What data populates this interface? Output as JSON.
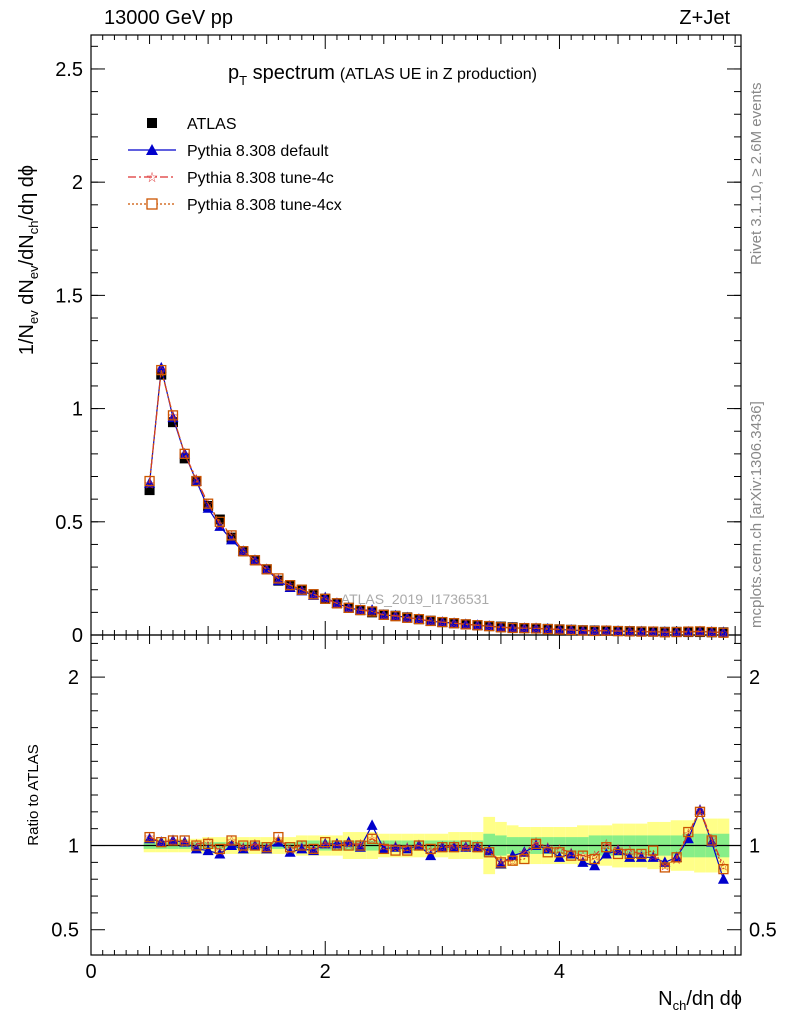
{
  "header": {
    "left": "13000 GeV pp",
    "right": "Z+Jet"
  },
  "side_labels": {
    "rivet": "Rivet 3.1.10, ≥ 2.6M events",
    "mcplots": "mcplots.cern.ch [arXiv:1306.3436]"
  },
  "chart_data": [
    {
      "type": "scatter",
      "panel": "main",
      "title_main": "p",
      "title_sub": "T",
      "title_rest": " spectrum",
      "title_note": "(ATLAS UE in Z production)",
      "watermark": "ATLAS_2019_I1736531",
      "xlabel_main": "N",
      "xlabel_sub": "ch",
      "xlabel_rest": "/dη dϕ",
      "ylabel_pre": "1/N",
      "ylabel_sub1": "ev",
      "ylabel_mid": " dN",
      "ylabel_sub2": "ev",
      "ylabel_mid2": "/dN",
      "ylabel_sub3": "ch",
      "ylabel_post": "/dη dϕ",
      "xlim": [
        0,
        5.55
      ],
      "ylim": [
        0,
        2.65
      ],
      "y_ticks": [
        "0",
        "0.5",
        "1",
        "1.5",
        "2",
        "2.5"
      ],
      "y_tick_values": [
        0,
        0.5,
        1,
        1.5,
        2,
        2.5
      ],
      "legend_position": "top-left",
      "x": [
        0.5,
        0.6,
        0.7,
        0.8,
        0.9,
        1.0,
        1.1,
        1.2,
        1.3,
        1.4,
        1.5,
        1.6,
        1.7,
        1.8,
        1.9,
        2.0,
        2.1,
        2.2,
        2.3,
        2.4,
        2.5,
        2.6,
        2.7,
        2.8,
        2.9,
        3.0,
        3.1,
        3.2,
        3.3,
        3.4,
        3.5,
        3.6,
        3.7,
        3.8,
        3.9,
        4.0,
        4.1,
        4.2,
        4.3,
        4.4,
        4.5,
        4.6,
        4.7,
        4.8,
        4.9,
        5.0,
        5.1,
        5.2,
        5.3,
        5.4
      ],
      "series": [
        {
          "name": "ATLAS",
          "color": "#000000",
          "marker": "square",
          "values": [
            0.64,
            1.15,
            0.94,
            0.78,
            0.68,
            0.57,
            0.51,
            0.43,
            0.37,
            0.33,
            0.29,
            0.24,
            0.22,
            0.2,
            0.18,
            0.16,
            0.14,
            0.12,
            0.11,
            0.1,
            0.09,
            0.085,
            0.078,
            0.07,
            0.063,
            0.057,
            0.052,
            0.047,
            0.043,
            0.04,
            0.037,
            0.034,
            0.031,
            0.029,
            0.027,
            0.025,
            0.023,
            0.021,
            0.02,
            0.019,
            0.018,
            0.017,
            0.016,
            0.015,
            0.014,
            0.014,
            0.013,
            0.013,
            0.012,
            0.012
          ]
        },
        {
          "name": "Pythia 8.308 default",
          "color": "#0000cc",
          "marker": "triangle",
          "values": [
            0.67,
            1.18,
            0.96,
            0.8,
            0.68,
            0.56,
            0.48,
            0.42,
            0.37,
            0.33,
            0.29,
            0.24,
            0.21,
            0.195,
            0.175,
            0.165,
            0.14,
            0.12,
            0.11,
            0.11,
            0.088,
            0.085,
            0.077,
            0.07,
            0.06,
            0.057,
            0.052,
            0.047,
            0.043,
            0.039,
            0.035,
            0.032,
            0.03,
            0.029,
            0.027,
            0.024,
            0.022,
            0.019,
            0.018,
            0.018,
            0.017,
            0.016,
            0.015,
            0.014,
            0.013,
            0.013,
            0.014,
            0.015,
            0.013,
            0.012
          ]
        },
        {
          "name": "Pythia 8.308 tune-4c",
          "color": "#dd3333",
          "marker": "star",
          "values": [
            0.67,
            1.17,
            0.97,
            0.8,
            0.69,
            0.58,
            0.49,
            0.44,
            0.37,
            0.33,
            0.29,
            0.25,
            0.22,
            0.2,
            0.18,
            0.16,
            0.14,
            0.12,
            0.11,
            0.104,
            0.088,
            0.085,
            0.077,
            0.07,
            0.062,
            0.057,
            0.052,
            0.047,
            0.043,
            0.039,
            0.034,
            0.031,
            0.03,
            0.03,
            0.027,
            0.025,
            0.022,
            0.02,
            0.019,
            0.019,
            0.018,
            0.017,
            0.015,
            0.014,
            0.013,
            0.013,
            0.014,
            0.015,
            0.013,
            0.011
          ]
        },
        {
          "name": "Pythia 8.308 tune-4cx",
          "color": "#cc5500",
          "marker": "open-square",
          "values": [
            0.68,
            1.17,
            0.97,
            0.8,
            0.68,
            0.58,
            0.5,
            0.44,
            0.37,
            0.33,
            0.29,
            0.25,
            0.22,
            0.2,
            0.18,
            0.16,
            0.14,
            0.12,
            0.11,
            0.104,
            0.089,
            0.083,
            0.076,
            0.07,
            0.062,
            0.057,
            0.052,
            0.047,
            0.043,
            0.039,
            0.034,
            0.031,
            0.03,
            0.029,
            0.026,
            0.024,
            0.022,
            0.02,
            0.018,
            0.019,
            0.017,
            0.016,
            0.015,
            0.015,
            0.012,
            0.013,
            0.015,
            0.016,
            0.013,
            0.01
          ]
        }
      ]
    },
    {
      "type": "scatter",
      "panel": "ratio",
      "ylabel": "Ratio to ATLAS",
      "xlim": [
        0,
        5.55
      ],
      "ylim": [
        0.35,
        2.25
      ],
      "x_ticks": [
        "0",
        "2",
        "4"
      ],
      "x_tick_values": [
        0,
        2,
        4
      ],
      "y_ticks": [
        "0.5",
        "1",
        "2"
      ],
      "y_tick_values": [
        0.5,
        1,
        2
      ],
      "x": [
        0.5,
        0.6,
        0.7,
        0.8,
        0.9,
        1.0,
        1.1,
        1.2,
        1.3,
        1.4,
        1.5,
        1.6,
        1.7,
        1.8,
        1.9,
        2.0,
        2.1,
        2.2,
        2.3,
        2.4,
        2.5,
        2.6,
        2.7,
        2.8,
        2.9,
        3.0,
        3.1,
        3.2,
        3.3,
        3.4,
        3.5,
        3.6,
        3.7,
        3.8,
        3.9,
        4.0,
        4.1,
        4.2,
        4.3,
        4.4,
        4.5,
        4.6,
        4.7,
        4.8,
        4.9,
        5.0,
        5.1,
        5.2,
        5.3,
        5.4
      ],
      "band_inner": [
        0.02,
        0.02,
        0.02,
        0.02,
        0.02,
        0.02,
        0.02,
        0.02,
        0.02,
        0.02,
        0.02,
        0.02,
        0.02,
        0.03,
        0.03,
        0.03,
        0.03,
        0.03,
        0.03,
        0.03,
        0.03,
        0.03,
        0.03,
        0.03,
        0.03,
        0.03,
        0.03,
        0.03,
        0.03,
        0.07,
        0.06,
        0.05,
        0.05,
        0.05,
        0.05,
        0.05,
        0.05,
        0.05,
        0.06,
        0.06,
        0.06,
        0.06,
        0.06,
        0.06,
        0.06,
        0.06,
        0.07,
        0.07,
        0.07,
        0.07
      ],
      "band_outer": [
        0.04,
        0.04,
        0.04,
        0.04,
        0.04,
        0.05,
        0.05,
        0.05,
        0.05,
        0.05,
        0.05,
        0.05,
        0.05,
        0.06,
        0.06,
        0.06,
        0.06,
        0.08,
        0.08,
        0.08,
        0.07,
        0.07,
        0.07,
        0.07,
        0.07,
        0.07,
        0.08,
        0.08,
        0.08,
        0.17,
        0.14,
        0.12,
        0.11,
        0.11,
        0.11,
        0.11,
        0.11,
        0.12,
        0.12,
        0.12,
        0.13,
        0.13,
        0.13,
        0.14,
        0.14,
        0.15,
        0.15,
        0.16,
        0.16,
        0.16
      ],
      "series": [
        {
          "name": "Pythia 8.308 default",
          "color": "#0000cc",
          "marker": "triangle",
          "values": [
            1.04,
            1.02,
            1.03,
            1.02,
            0.98,
            0.97,
            0.95,
            1.0,
            0.98,
            1.0,
            0.98,
            1.02,
            0.96,
            0.98,
            0.97,
            1.01,
            1.01,
            1.02,
            0.99,
            1.12,
            0.98,
            0.99,
            0.98,
            1.0,
            0.94,
            0.99,
            0.99,
            0.99,
            0.99,
            0.97,
            0.89,
            0.94,
            0.96,
            1.0,
            0.98,
            0.93,
            0.95,
            0.9,
            0.88,
            0.95,
            0.97,
            0.93,
            0.93,
            0.93,
            0.9,
            0.93,
            1.04,
            1.21,
            1.02,
            0.8
          ]
        },
        {
          "name": "Pythia 8.308 tune-4c",
          "color": "#dd3333",
          "marker": "star",
          "values": [
            1.05,
            1.02,
            1.03,
            1.02,
            1.01,
            1.02,
            0.97,
            1.03,
            0.99,
            1.01,
            0.99,
            1.04,
            0.98,
            1.0,
            0.98,
            1.01,
            1.0,
            1.01,
            1.01,
            1.04,
            1.0,
            1.0,
            0.99,
            1.0,
            0.97,
            0.99,
            1.0,
            0.99,
            0.99,
            0.96,
            0.91,
            0.91,
            0.96,
            1.02,
            0.99,
            0.98,
            0.96,
            0.94,
            0.94,
            1.01,
            0.98,
            0.97,
            0.95,
            0.94,
            0.88,
            0.92,
            1.07,
            1.21,
            1.04,
            0.88
          ]
        },
        {
          "name": "Pythia 8.308 tune-4cx",
          "color": "#cc5500",
          "marker": "open-square",
          "values": [
            1.05,
            1.02,
            1.03,
            1.03,
            1.0,
            1.01,
            0.98,
            1.03,
            1.0,
            1.0,
            0.99,
            1.05,
            0.99,
            1.0,
            0.98,
            1.02,
            1.0,
            1.0,
            1.0,
            1.04,
            0.98,
            0.97,
            0.97,
            1.0,
            0.98,
            0.99,
            0.99,
            1.0,
            0.99,
            0.96,
            0.9,
            0.91,
            0.92,
            1.01,
            0.96,
            0.96,
            0.94,
            0.94,
            0.92,
            0.99,
            0.95,
            0.95,
            0.95,
            0.97,
            0.87,
            0.93,
            1.08,
            1.2,
            1.03,
            0.86
          ]
        }
      ]
    }
  ]
}
